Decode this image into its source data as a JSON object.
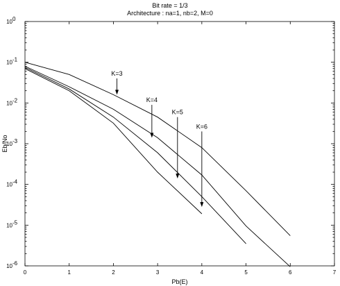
{
  "chart_data": {
    "type": "line",
    "title": "Bit rate = 1/3",
    "subtitle": "Architecture : na=1, nb=2, M=0",
    "xlabel": "Pb(E)",
    "ylabel": "Eb/No",
    "xlim": [
      0,
      7
    ],
    "ylim": [
      1e-06,
      1
    ],
    "yscale": "log",
    "grid": false,
    "x_ticks": [
      {
        "value": 0,
        "label": "0"
      },
      {
        "value": 1,
        "label": "1"
      },
      {
        "value": 2,
        "label": "2"
      },
      {
        "value": 3,
        "label": "3"
      },
      {
        "value": 4,
        "label": "4"
      },
      {
        "value": 5,
        "label": "5"
      },
      {
        "value": 6,
        "label": "6"
      },
      {
        "value": 7,
        "label": "7"
      }
    ],
    "y_ticks": [
      {
        "value": 1,
        "base": "10",
        "exp": "0"
      },
      {
        "value": 0.1,
        "base": "10",
        "exp": "-1"
      },
      {
        "value": 0.01,
        "base": "10",
        "exp": "-2"
      },
      {
        "value": 0.001,
        "base": "10",
        "exp": "-3"
      },
      {
        "value": 0.0001,
        "base": "10",
        "exp": "-4"
      },
      {
        "value": 1e-05,
        "base": "10",
        "exp": "-5"
      },
      {
        "value": 1e-06,
        "base": "10",
        "exp": "-6"
      }
    ],
    "series": [
      {
        "x": [
          0,
          1,
          2,
          3,
          4,
          5,
          6
        ],
        "y": [
          0.1,
          0.05,
          0.016,
          0.0045,
          0.0008,
          7e-05,
          5.5e-06
        ]
      },
      {
        "x": [
          0,
          1,
          2,
          3,
          4,
          5,
          6
        ],
        "y": [
          0.08,
          0.025,
          0.007,
          0.0014,
          0.00017,
          9.5e-06,
          9.5e-07
        ]
      },
      {
        "x": [
          0,
          1,
          2,
          3,
          4,
          5
        ],
        "y": [
          0.075,
          0.022,
          0.0045,
          0.0006,
          5e-05,
          3.5e-06
        ]
      },
      {
        "x": [
          0,
          1,
          2,
          3,
          4
        ],
        "y": [
          0.07,
          0.02,
          0.0032,
          0.0002,
          1.9e-05
        ]
      }
    ],
    "annotations": [
      {
        "text": "K=3",
        "arrow_x": 2.08,
        "arrow_from": 0.04,
        "arrow_to": 0.016
      },
      {
        "text": "K=4",
        "arrow_x": 2.87,
        "arrow_from": 0.009,
        "arrow_to": 0.0014
      },
      {
        "text": "K=5",
        "arrow_x": 3.45,
        "arrow_from": 0.0045,
        "arrow_to": 0.00014
      },
      {
        "text": "K=6",
        "arrow_x": 4.0,
        "arrow_from": 0.002,
        "arrow_to": 2.8e-05
      }
    ]
  }
}
